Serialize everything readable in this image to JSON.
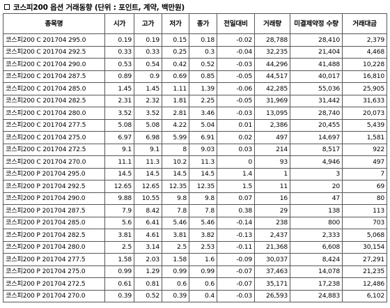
{
  "title": "코스피200 옵션 거래동향 (단위 : 포인트, 계약, 백만원)",
  "table": {
    "headers": [
      "종목명",
      "시가",
      "고가",
      "저가",
      "종가",
      "전일대비",
      "거래량",
      "미결제약정 수량",
      "거래대금"
    ],
    "rows": [
      [
        "코스피200 C 201704 295.0",
        "0.19",
        "0.19",
        "0.15",
        "0.18",
        "-0.02",
        "28,788",
        "28,410",
        "2,379"
      ],
      [
        "코스피200 C 201704 292.5",
        "0.33",
        "0.33",
        "0.25",
        "0.3",
        "-0.04",
        "32,235",
        "21,404",
        "4,468"
      ],
      [
        "코스피200 C 201704 290.0",
        "0.53",
        "0.54",
        "0.42",
        "0.52",
        "-0.03",
        "44,296",
        "41,488",
        "10,228"
      ],
      [
        "코스피200 C 201704 287.5",
        "0.89",
        "0.9",
        "0.69",
        "0.85",
        "-0.05",
        "44,517",
        "40,017",
        "16,810"
      ],
      [
        "코스피200 C 201704 285.0",
        "1.45",
        "1.45",
        "1.11",
        "1.39",
        "-0.06",
        "42,285",
        "55,036",
        "25,905"
      ],
      [
        "코스피200 C 201704 282.5",
        "2.31",
        "2.32",
        "1.81",
        "2.25",
        "-0.05",
        "31,969",
        "31,442",
        "31,633"
      ],
      [
        "코스피200 C 201704 280.0",
        "3.52",
        "3.52",
        "2.81",
        "3.46",
        "-0.03",
        "13,095",
        "28,740",
        "20,073"
      ],
      [
        "코스피200 C 201704 277.5",
        "5.08",
        "5.08",
        "4.22",
        "5.04",
        "0.01",
        "2,386",
        "20,455",
        "5,439"
      ],
      [
        "코스피200 C 201704 275.0",
        "6.97",
        "6.98",
        "5.99",
        "6.91",
        "0.02",
        "497",
        "14,697",
        "1,581"
      ],
      [
        "코스피200 C 201704 272.5",
        "9.1",
        "9.1",
        "8",
        "9.03",
        "0.03",
        "214",
        "8,517",
        "922"
      ],
      [
        "코스피200 C 201704 270.0",
        "11.1",
        "11.3",
        "10.2",
        "11.3",
        "0",
        "93",
        "4,946",
        "497"
      ],
      [
        "코스피200 P 201704 295.0",
        "14.5",
        "14.5",
        "14.5",
        "14.5",
        "1.4",
        "1",
        "3",
        "7"
      ],
      [
        "코스피200 P 201704 292.5",
        "12.65",
        "12.65",
        "12.35",
        "12.35",
        "1.5",
        "11",
        "20",
        "69"
      ],
      [
        "코스피200 P 201704 290.0",
        "9.88",
        "10.55",
        "9.8",
        "9.8",
        "0.07",
        "16",
        "47",
        "80"
      ],
      [
        "코스피200 P 201704 287.5",
        "7.9",
        "8.42",
        "7.8",
        "7.8",
        "0.38",
        "29",
        "138",
        "113"
      ],
      [
        "코스피200 P 201704 285.0",
        "5.6",
        "6.41",
        "5.46",
        "5.46",
        "-0.14",
        "238",
        "800",
        "703"
      ],
      [
        "코스피200 P 201704 282.5",
        "3.81",
        "4.61",
        "3.81",
        "3.82",
        "-0.13",
        "2,437",
        "2,333",
        "5,068"
      ],
      [
        "코스피200 P 201704 280.0",
        "2.5",
        "3.14",
        "2.5",
        "2.53",
        "-0.11",
        "21,368",
        "6,608",
        "30,154"
      ],
      [
        "코스피200 P 201704 277.5",
        "1.58",
        "2.03",
        "1.58",
        "1.6",
        "-0.09",
        "30,037",
        "8,424",
        "27,291"
      ],
      [
        "코스피200 P 201704 275.0",
        "0.99",
        "1.29",
        "0.99",
        "0.99",
        "-0.07",
        "37,463",
        "14,078",
        "21,235"
      ],
      [
        "코스피200 P 201704 272.5",
        "0.61",
        "0.81",
        "0.6",
        "0.6",
        "-0.07",
        "35,171",
        "17,238",
        "12,486"
      ],
      [
        "코스피200 P 201704 270.0",
        "0.39",
        "0.52",
        "0.39",
        "0.4",
        "-0.03",
        "26,593",
        "24,883",
        "6,102"
      ]
    ]
  }
}
